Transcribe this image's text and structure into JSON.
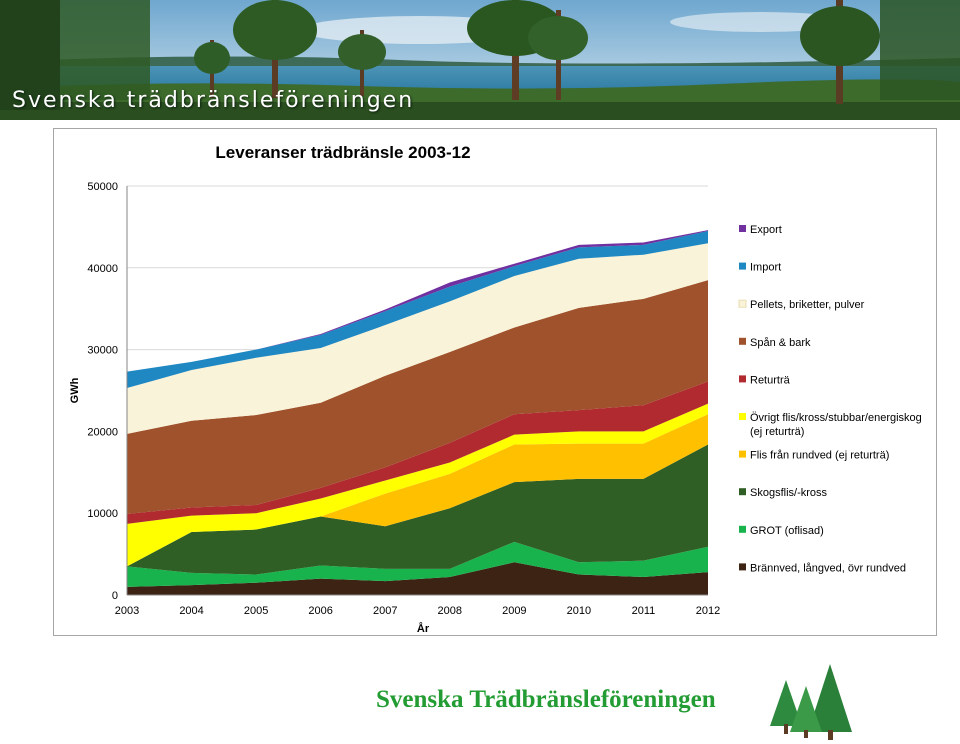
{
  "header": {
    "title": "Svenska trädbränsleföreningen"
  },
  "footer": {
    "title": "Svenska Trädbränsleföreningen",
    "logo_icon": "pine-trees-icon"
  },
  "colors": {
    "footer_text": "#239c33",
    "plot_gridline": "#d9d9d9"
  },
  "chart_data": {
    "type": "area",
    "stacked": true,
    "title": "Leveranser trädbränsle 2003-12",
    "xlabel": "År",
    "ylabel": "GWh",
    "ylim": [
      0,
      50000
    ],
    "yticks": [
      0,
      10000,
      20000,
      30000,
      40000,
      50000
    ],
    "ytick_labels": [
      "0",
      "10000",
      "20000",
      "30000",
      "40000",
      "50000"
    ],
    "grid": true,
    "legend_position": "right",
    "x": [
      "2003",
      "2004",
      "2005",
      "2006",
      "2007",
      "2008",
      "2009",
      "2010",
      "2011",
      "2012"
    ],
    "series": [
      {
        "name": "Brännved, långved, övr rundved",
        "color": "#3d2314",
        "values": [
          1000,
          1200,
          1500,
          2000,
          1700,
          2200,
          4000,
          2500,
          2200,
          2800
        ]
      },
      {
        "name": "GROT (oflisad)",
        "color": "#19b34d",
        "values": [
          2500,
          1500,
          1000,
          1600,
          1500,
          1000,
          2500,
          1500,
          2000,
          3100
        ]
      },
      {
        "name": "Skogsflis/-kross",
        "color": "#2f5f25",
        "values": [
          0,
          5000,
          5500,
          6000,
          5200,
          7400,
          7300,
          10200,
          10000,
          12500
        ]
      },
      {
        "name": "Flis från rundved (ej returträ)",
        "color": "#ffc000",
        "values": [
          0,
          0,
          0,
          0,
          4000,
          4200,
          4600,
          4300,
          4300,
          3700
        ]
      },
      {
        "name": "Övrigt flis/kross/stubbar/energiskog\n(ej returträ)",
        "color": "#ffff00",
        "values": [
          5200,
          2000,
          2000,
          2200,
          1600,
          1400,
          1200,
          1500,
          1500,
          1300
        ]
      },
      {
        "name": "Returträ",
        "color": "#b02a30",
        "values": [
          1200,
          1000,
          1000,
          1300,
          1600,
          2400,
          2500,
          2600,
          3200,
          2700
        ]
      },
      {
        "name": "Spån & bark",
        "color": "#a0522d",
        "values": [
          9800,
          10600,
          11000,
          10400,
          11200,
          11100,
          10600,
          12500,
          13000,
          12400
        ]
      },
      {
        "name": "Pellets, briketter, pulver",
        "color": "#f9f3d9",
        "values": [
          5600,
          6200,
          7000,
          6700,
          6200,
          6200,
          6300,
          6000,
          5400,
          4500
        ]
      },
      {
        "name": "Import",
        "color": "#1f87c1",
        "values": [
          2000,
          1000,
          1000,
          1600,
          1700,
          1800,
          1200,
          1400,
          1200,
          1500
        ]
      },
      {
        "name": "Export",
        "color": "#7030a0",
        "values": [
          0,
          0,
          0,
          100,
          200,
          500,
          300,
          300,
          300,
          100
        ]
      }
    ]
  }
}
